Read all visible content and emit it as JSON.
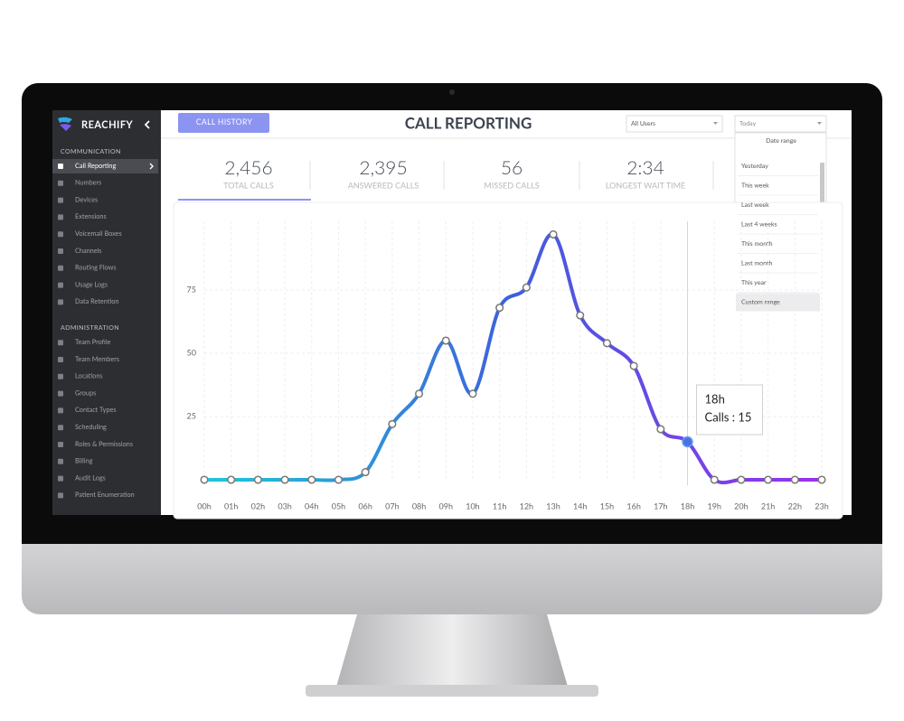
{
  "sidebar": {
    "brand": "REACHIFY",
    "sections": [
      {
        "title": "COMMUNICATION",
        "items": [
          "Call Reporting",
          "Numbers",
          "Devices",
          "Extensions",
          "Voicemail Boxes",
          "Channels",
          "Routing Flows",
          "Usage Logs",
          "Data Retention"
        ]
      },
      {
        "title": "ADMINISTRATION",
        "items": [
          "Team Profile",
          "Team Members",
          "Locations",
          "Groups",
          "Contact Types",
          "Scheduling",
          "Roles & Permissions",
          "Billing",
          "Audit Logs",
          "Patient Enumeration"
        ]
      }
    ],
    "active": "Call Reporting"
  },
  "header": {
    "button": "CALL HISTORY",
    "title": "CALL REPORTING",
    "user_filter": "All Users",
    "date_filter": "Today"
  },
  "dropdown": {
    "title": "Date range",
    "options": [
      "Yesterday",
      "This week",
      "Last week",
      "Last 4 weeks",
      "This month",
      "Last month",
      "This year",
      "Custom range"
    ],
    "selected": "Custom range"
  },
  "stats": [
    {
      "value": "2,456",
      "label": "TOTAL CALLS"
    },
    {
      "value": "2,395",
      "label": "ANSWERED CALLS"
    },
    {
      "value": "56",
      "label": "MISSED CALLS"
    },
    {
      "value": "2:34",
      "label": "LONGEST WAIT TIME"
    }
  ],
  "chart_data": {
    "type": "line",
    "categories": [
      "00h",
      "01h",
      "02h",
      "03h",
      "04h",
      "05h",
      "06h",
      "07h",
      "08h",
      "09h",
      "10h",
      "11h",
      "12h",
      "13h",
      "14h",
      "15h",
      "16h",
      "17h",
      "18h",
      "19h",
      "20h",
      "21h",
      "22h",
      "23h"
    ],
    "values": [
      0,
      0,
      0,
      0,
      0,
      0,
      3,
      22,
      34,
      55,
      34,
      68,
      76,
      97,
      65,
      54,
      45,
      20,
      15,
      0,
      0,
      0,
      0,
      0
    ],
    "gradient": [
      "#1ec8d6",
      "#3f5fdc",
      "#9b2ff0"
    ],
    "ylim": [
      0,
      100
    ],
    "yticks": [
      25,
      50,
      75
    ],
    "grid": true,
    "tooltip": {
      "title": "18h",
      "text": "Calls : 15"
    }
  }
}
